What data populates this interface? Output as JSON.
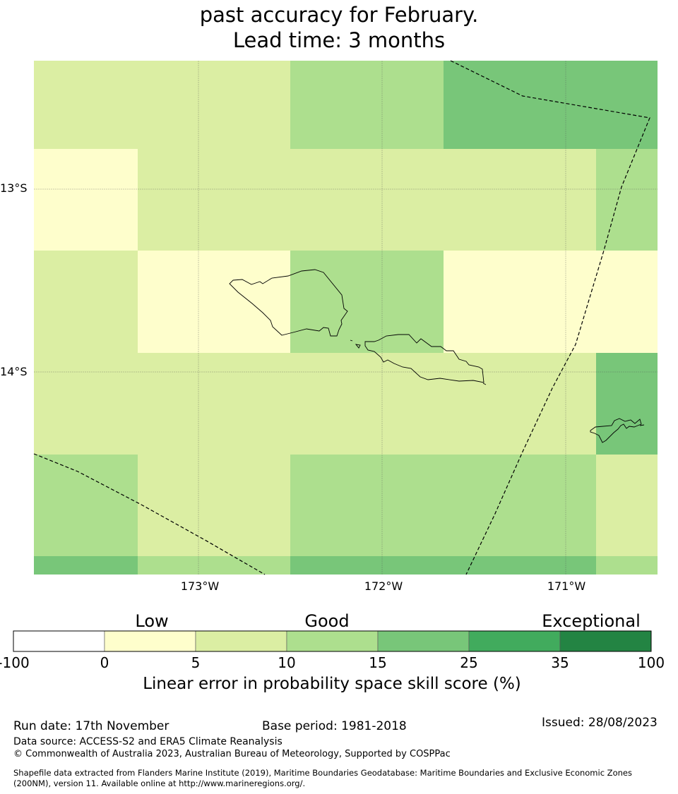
{
  "title": {
    "line1": "past accuracy for February.",
    "line2": "Lead time: 3 months"
  },
  "map": {
    "lat_ticks": [
      "13°S",
      "14°S"
    ],
    "lon_ticks": [
      "173°W",
      "172°W",
      "171°W"
    ],
    "grid_skill_bands": [
      [
        10,
        10,
        15,
        25,
        25
      ],
      [
        5,
        10,
        10,
        10,
        15
      ],
      [
        10,
        5,
        15,
        5,
        5
      ],
      [
        10,
        10,
        10,
        10,
        25
      ],
      [
        15,
        10,
        15,
        15,
        10
      ],
      [
        25,
        15,
        25,
        25,
        15
      ]
    ]
  },
  "colorbar": {
    "categories": [
      "Low",
      "Good",
      "Exceptional"
    ],
    "ticks": [
      "-100",
      "0",
      "5",
      "10",
      "15",
      "25",
      "35",
      "100"
    ],
    "colors": [
      "#ffffff",
      "#fefecc",
      "#dbeea3",
      "#addf8e",
      "#78c679",
      "#41ab5d",
      "#238443"
    ],
    "label": "Linear error in probability space skill score (%)"
  },
  "footer": {
    "run_date": "Run date: 17th November",
    "base_period": "Base period: 1981-2018",
    "issued": "Issued: 28/08/2023",
    "data_source": "Data source: ACCESS-S2 and ERA5 Climate Reanalysis",
    "copyright": "© Commonwealth of Australia 2023, Australian Bureau of Meteorology, Supported by COSPPac",
    "shapefile_line1": "Shapefile data extracted from Flanders Marine Institute (2019), Maritime Boundaries Geodatabase: Maritime Boundaries and Exclusive Economic Zones",
    "shapefile_line2": "(200NM), version 11. Available online at http://www.marineregions.org/."
  }
}
